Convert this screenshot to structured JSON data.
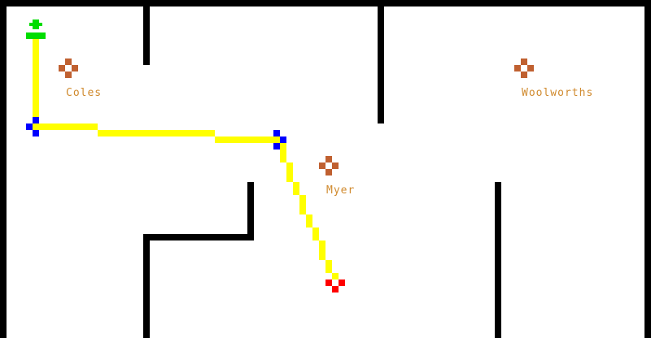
{
  "map": {
    "colors": {
      "background": "#ffffff",
      "wall": "#000000",
      "path": "#ffff00",
      "waypoint": "#0000ff",
      "start_marker": "#00dd00",
      "end_marker": "#ff0000",
      "store_marker": "#c06030",
      "store_label": "#d08a2e"
    },
    "stores": [
      {
        "name": "Coles",
        "icon": "store-diamond-icon"
      },
      {
        "name": "Myer",
        "icon": "store-diamond-icon"
      },
      {
        "name": "Woolworths",
        "icon": "store-diamond-icon"
      }
    ],
    "route": {
      "start_icon": "start-arrow-icon",
      "waypoint_icon": "waypoint-cross-icon",
      "end_icon": "destination-cross-icon"
    }
  }
}
